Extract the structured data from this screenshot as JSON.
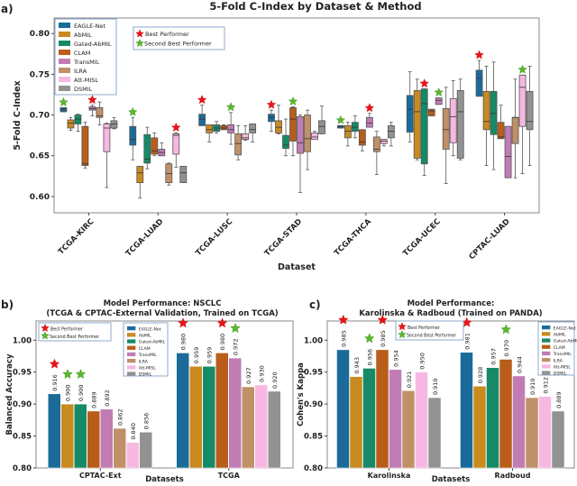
{
  "models": [
    "EAGLE-Net",
    "AbMIL",
    "Gated-AbMIL",
    "CLAM",
    "TransMIL",
    "ILRA",
    "Att-MISL",
    "DSMIL"
  ],
  "colors": [
    "#1b6b9a",
    "#c98a1f",
    "#168a66",
    "#b95d1a",
    "#c27cb4",
    "#c09069",
    "#f6b8e0",
    "#929292"
  ],
  "star_colors": {
    "best": "#e8141c",
    "second": "#5cb82e"
  },
  "star_legend": {
    "best": "Best Performer",
    "second": "Second Best Performer"
  },
  "chart_data": [
    {
      "panel": "a)",
      "type": "box",
      "title": "5-Fold C-Index by Dataset & Method",
      "xlabel": "Dataset",
      "ylabel": "5-Fold C-Index",
      "ylim": [
        0.58,
        0.819
      ],
      "yticks": [
        "0.60",
        "0.65",
        "0.70",
        "0.75",
        "0.80"
      ],
      "grid": false,
      "legend_position": "top-left",
      "categories": [
        "TCGA-KIRC",
        "TCGA-LUAD",
        "TCGA-LUSC",
        "TCGA-STAD",
        "TCGA-THCA",
        "TCGA-UCEC",
        "CPTAC-LUAD"
      ],
      "box_format": [
        "min",
        "q1",
        "median",
        "q3",
        "max"
      ],
      "series": [
        {
          "name": "EAGLE-Net",
          "boxes": [
            [
              0.704,
              0.704,
              0.707,
              0.709,
              0.709
            ],
            [
              0.645,
              0.663,
              0.67,
              0.686,
              0.697
            ],
            [
              0.687,
              0.687,
              0.695,
              0.701,
              0.712
            ],
            [
              0.68,
              0.692,
              0.697,
              0.701,
              0.706
            ],
            [
              0.684,
              0.684,
              0.686,
              0.687,
              0.687
            ],
            [
              0.667,
              0.679,
              0.707,
              0.724,
              0.753
            ],
            [
              0.723,
              0.723,
              0.745,
              0.755,
              0.767
            ]
          ]
        },
        {
          "name": "AbMIL",
          "boxes": [
            [
              0.681,
              0.684,
              0.69,
              0.694,
              0.697
            ],
            [
              0.598,
              0.617,
              0.629,
              0.637,
              0.637
            ],
            [
              0.667,
              0.678,
              0.682,
              0.688,
              0.688
            ],
            [
              0.677,
              0.678,
              0.685,
              0.693,
              0.712
            ],
            [
              0.662,
              0.672,
              0.68,
              0.687,
              0.691
            ],
            [
              0.645,
              0.647,
              0.704,
              0.73,
              0.744
            ],
            [
              0.638,
              0.682,
              0.692,
              0.729,
              0.76
            ]
          ]
        },
        {
          "name": "Gated-AbMIL",
          "boxes": [
            [
              0.68,
              0.689,
              0.695,
              0.7,
              0.701
            ],
            [
              0.634,
              0.641,
              0.646,
              0.676,
              0.685
            ],
            [
              0.678,
              0.68,
              0.684,
              0.688,
              0.692
            ],
            [
              0.65,
              0.659,
              0.663,
              0.675,
              0.695
            ],
            [
              0.672,
              0.68,
              0.685,
              0.691,
              0.699
            ],
            [
              0.626,
              0.64,
              0.714,
              0.732,
              0.732
            ],
            [
              0.633,
              0.676,
              0.702,
              0.729,
              0.765
            ]
          ]
        },
        {
          "name": "CLAM",
          "boxes": [
            [
              0.635,
              0.638,
              0.64,
              0.686,
              0.691
            ],
            [
              0.65,
              0.652,
              0.656,
              0.672,
              0.678
            ],
            [
              0.682,
              0.682,
              0.684,
              0.687,
              0.688
            ],
            [
              0.65,
              0.668,
              0.695,
              0.709,
              0.71
            ],
            [
              0.656,
              0.663,
              0.667,
              0.682,
              0.682
            ],
            [
              0.699,
              0.699,
              0.705,
              0.707,
              0.707
            ],
            [
              0.671,
              0.671,
              0.673,
              0.691,
              0.712
            ]
          ]
        },
        {
          "name": "TransMIL",
          "boxes": [
            [
              0.699,
              0.706,
              0.708,
              0.71,
              0.712
            ],
            [
              0.65,
              0.65,
              0.654,
              0.658,
              0.666
            ],
            [
              0.664,
              0.678,
              0.682,
              0.688,
              0.703
            ],
            [
              0.605,
              0.653,
              0.666,
              0.698,
              0.7
            ],
            [
              0.685,
              0.685,
              0.69,
              0.697,
              0.702
            ],
            [
              0.713,
              0.713,
              0.718,
              0.721,
              0.721
            ],
            [
              0.623,
              0.623,
              0.649,
              0.686,
              0.686
            ]
          ]
        },
        {
          "name": "ILRA",
          "boxes": [
            [
              0.688,
              0.697,
              0.699,
              0.709,
              0.716
            ],
            [
              0.614,
              0.617,
              0.628,
              0.64,
              0.641
            ],
            [
              0.645,
              0.651,
              0.665,
              0.677,
              0.687
            ],
            [
              0.633,
              0.655,
              0.671,
              0.7,
              0.706
            ],
            [
              0.627,
              0.655,
              0.658,
              0.673,
              0.68
            ],
            [
              0.616,
              0.658,
              0.682,
              0.708,
              0.734
            ],
            [
              0.623,
              0.665,
              0.697,
              0.697,
              0.744
            ]
          ]
        },
        {
          "name": "Att-MISL",
          "boxes": [
            [
              0.611,
              0.655,
              0.684,
              0.689,
              0.69
            ],
            [
              0.636,
              0.652,
              0.675,
              0.677,
              0.678
            ],
            [
              0.669,
              0.67,
              0.672,
              0.677,
              0.687
            ],
            [
              0.67,
              0.67,
              0.673,
              0.678,
              0.68
            ],
            [
              0.662,
              0.665,
              0.668,
              0.67,
              0.67
            ],
            [
              0.65,
              0.666,
              0.698,
              0.72,
              0.742
            ],
            [
              0.628,
              0.686,
              0.734,
              0.749,
              0.749
            ]
          ]
        },
        {
          "name": "DSMIL",
          "boxes": [
            [
              0.683,
              0.684,
              0.689,
              0.693,
              0.697
            ],
            [
              0.617,
              0.617,
              0.629,
              0.637,
              0.637
            ],
            [
              0.667,
              0.678,
              0.682,
              0.689,
              0.689
            ],
            [
              0.677,
              0.677,
              0.686,
              0.693,
              0.711
            ],
            [
              0.662,
              0.672,
              0.68,
              0.687,
              0.691
            ],
            [
              0.645,
              0.647,
              0.704,
              0.73,
              0.744
            ],
            [
              0.638,
              0.682,
              0.692,
              0.729,
              0.76
            ]
          ]
        }
      ],
      "best": [
        [
          "TransMIL"
        ],
        [
          "Att-MISL"
        ],
        [
          "EAGLE-Net"
        ],
        [
          "EAGLE-Net"
        ],
        [
          "TransMIL"
        ],
        [
          "Gated-AbMIL"
        ],
        [
          "EAGLE-Net"
        ]
      ],
      "second": [
        [
          "EAGLE-Net"
        ],
        [
          "EAGLE-Net"
        ],
        [
          "TransMIL"
        ],
        [
          "CLAM"
        ],
        [
          "EAGLE-Net"
        ],
        [
          "TransMIL"
        ],
        [
          "Att-MISL"
        ]
      ]
    },
    {
      "panel": "b)",
      "type": "bar",
      "title": "Model Performance: NSCLC",
      "subtitle": "(TCGA & CPTAC-External Validation, Trained on TCGA)",
      "xlabel": "Datasets",
      "ylabel": "Balanced Accuracy",
      "ylim": [
        0.8,
        1.03
      ],
      "yticks": [
        "0.80",
        "0.85",
        "0.90",
        "0.95",
        "1.00"
      ],
      "grid": false,
      "categories": [
        "CPTAC-Ext",
        "TCGA"
      ],
      "series": [
        {
          "name": "EAGLE-Net",
          "values": [
            "0.916",
            "0.980"
          ]
        },
        {
          "name": "AbMIL",
          "values": [
            "0.900",
            "0.959"
          ]
        },
        {
          "name": "Gated-AbMIL",
          "values": [
            "0.900",
            "0.959"
          ]
        },
        {
          "name": "CLAM",
          "values": [
            "0.889",
            "0.980"
          ]
        },
        {
          "name": "TransMIL",
          "values": [
            "0.892",
            "0.972"
          ]
        },
        {
          "name": "ILRA",
          "values": [
            "0.862",
            "0.927"
          ]
        },
        {
          "name": "Att-MISL",
          "values": [
            "0.840",
            "0.930"
          ]
        },
        {
          "name": "DSMIL",
          "values": [
            "0.856",
            "0.920"
          ]
        }
      ],
      "best": [
        [
          "EAGLE-Net"
        ],
        [
          "EAGLE-Net",
          "CLAM"
        ]
      ],
      "second": [
        [
          "AbMIL",
          "Gated-AbMIL"
        ],
        [
          "TransMIL"
        ]
      ]
    },
    {
      "panel": "c)",
      "type": "bar",
      "title": "Model Performance:",
      "subtitle": "Karolinska & Radboud (Trained on PANDA)",
      "xlabel": "Datasets",
      "ylabel": "Cohen's Kappa",
      "ylim": [
        0.8,
        1.03
      ],
      "yticks": [
        "0.80",
        "0.85",
        "0.90",
        "0.95",
        "1.00"
      ],
      "grid": false,
      "categories": [
        "Karolinska",
        "Radboud"
      ],
      "series": [
        {
          "name": "EAGLE-Net",
          "values": [
            "0.985",
            "0.981"
          ]
        },
        {
          "name": "AbMIL",
          "values": [
            "0.943",
            "0.928"
          ]
        },
        {
          "name": "Gated-AbMIL",
          "values": [
            "0.956",
            "0.957"
          ]
        },
        {
          "name": "CLAM",
          "values": [
            "0.985",
            "0.970"
          ]
        },
        {
          "name": "TransMIL",
          "values": [
            "0.954",
            "0.944"
          ]
        },
        {
          "name": "ILRA",
          "values": [
            "0.921",
            "0.910"
          ]
        },
        {
          "name": "Att-MISL",
          "values": [
            "0.950",
            "0.912"
          ]
        },
        {
          "name": "DSMIL",
          "values": [
            "0.910",
            "0.889"
          ]
        }
      ],
      "best": [
        [
          "EAGLE-Net",
          "CLAM"
        ],
        [
          "EAGLE-Net"
        ]
      ],
      "second": [
        [
          "Gated-AbMIL"
        ],
        [
          "CLAM"
        ]
      ]
    }
  ]
}
